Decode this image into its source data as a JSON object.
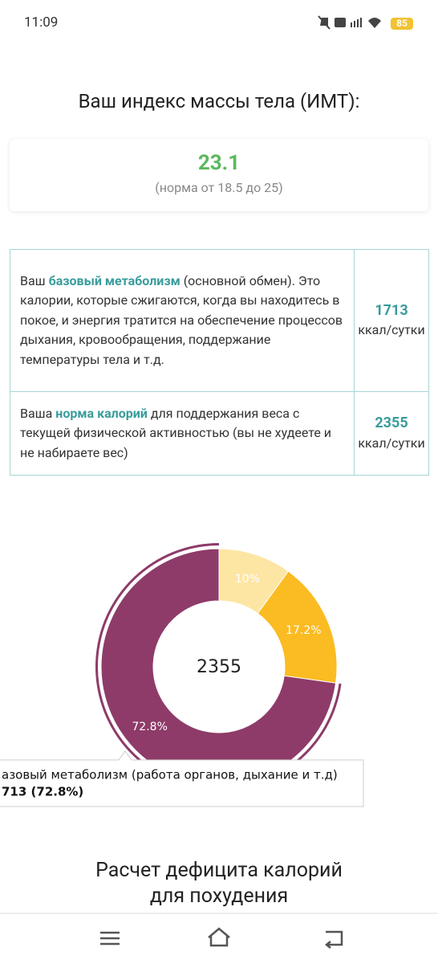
{
  "status_bar": {
    "time": "11:09",
    "battery": "85"
  },
  "header": {
    "title": "Ваш индекс массы тела (ИМТ):"
  },
  "bmi_card": {
    "value": "23.1",
    "note": "(норма от 18.5 до 25)"
  },
  "table": {
    "rows": [
      {
        "text": [
          "Ваш ",
          "базовый метаболизм",
          " (основной обмен). Это калории, которые сжигаются, когда вы находитесь в покое, и энергия тратится на обеспечение процессов дыхания, кровообращения, поддержание температуры тела и т.д."
        ],
        "value": "1713",
        "unit": "ккал/сутки"
      },
      {
        "text": [
          "Ваша ",
          "норма калорий",
          " для поддержания веса с текущей физической активностью (вы не худеете и не набираете вес)"
        ],
        "value": "2355",
        "unit": "ккал/сутки"
      }
    ]
  },
  "chart_data": {
    "type": "donut",
    "center_label": "2355",
    "values": [
      10,
      17.2,
      72.8
    ],
    "value_labels": [
      "10%",
      "17.2%",
      "72.8%"
    ],
    "colors": [
      "#fde6a3",
      "#fbbb22",
      "#8e3b69"
    ],
    "tooltip": [
      "азовый метаболизм (работа органов, дыхание и т.д)",
      "713 (72.8%)"
    ]
  },
  "section": {
    "title": "Расчет дефицита калорий для похудения"
  }
}
